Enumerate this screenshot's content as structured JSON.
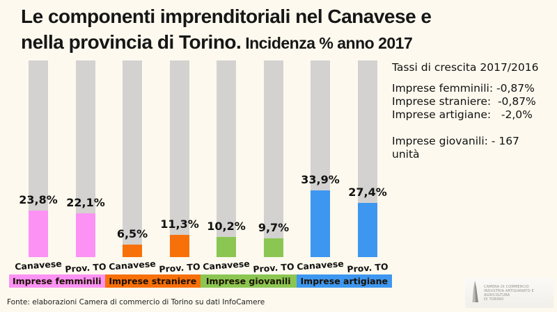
{
  "title": {
    "line1": "Le componenti imprenditoriali nel Canavese e",
    "line2_main": "nella provincia di Torino.",
    "line2_sub": " Incidenza % anno 2017"
  },
  "growth_panel": {
    "title": "Tassi di crescita 2017/2016",
    "lines": [
      "Imprese femminili: -0,87%",
      "Imprese straniere:  -0,87%",
      "Imprese artigiane:   -2,0%"
    ],
    "giovanili_line": "Imprese giovanili: - 167 unità"
  },
  "chart_data": {
    "type": "bar",
    "title": "Le componenti imprenditoriali nel Canavese e nella provincia di Torino. Incidenza % anno 2017",
    "xlabel": "",
    "ylabel": "Incidenza %",
    "ylim": [
      0,
      100
    ],
    "grid": false,
    "legend_position": "bottom",
    "track_color": "#D3D2D0",
    "categories": [
      "Canavese",
      "Prov. TO"
    ],
    "groups": [
      {
        "name": "Imprese femminili",
        "color": "#FC92F4",
        "bars": [
          {
            "category": "Canavese",
            "value": 23.8,
            "label": "23,8%"
          },
          {
            "category": "Prov. TO",
            "value": 22.1,
            "label": "22,1%"
          }
        ]
      },
      {
        "name": "Imprese straniere",
        "color": "#F8700A",
        "bars": [
          {
            "category": "Canavese",
            "value": 6.5,
            "label": "6,5%"
          },
          {
            "category": "Prov. TO",
            "value": 11.3,
            "label": "11,3%"
          }
        ]
      },
      {
        "name": "Imprese giovanili",
        "color": "#8BC652",
        "bars": [
          {
            "category": "Canavese",
            "value": 10.2,
            "label": "10,2%"
          },
          {
            "category": "Prov. TO",
            "value": 9.7,
            "label": "9,7%"
          }
        ]
      },
      {
        "name": "Imprese artigiane",
        "color": "#3D97F0",
        "bars": [
          {
            "category": "Canavese",
            "value": 33.9,
            "label": "33,9%"
          },
          {
            "category": "Prov. TO",
            "value": 27.4,
            "label": "27,4%"
          }
        ]
      }
    ]
  },
  "footer": {
    "source": "Fonte: elaborazioni Camera di commercio di Torino su dati InfoCamere"
  },
  "logo": {
    "line1": "CAMERA DI COMMERCIO",
    "line2": "INDUSTRIA ARTIGIANATO E AGRICOLTURA",
    "line3": "DI TORINO"
  }
}
